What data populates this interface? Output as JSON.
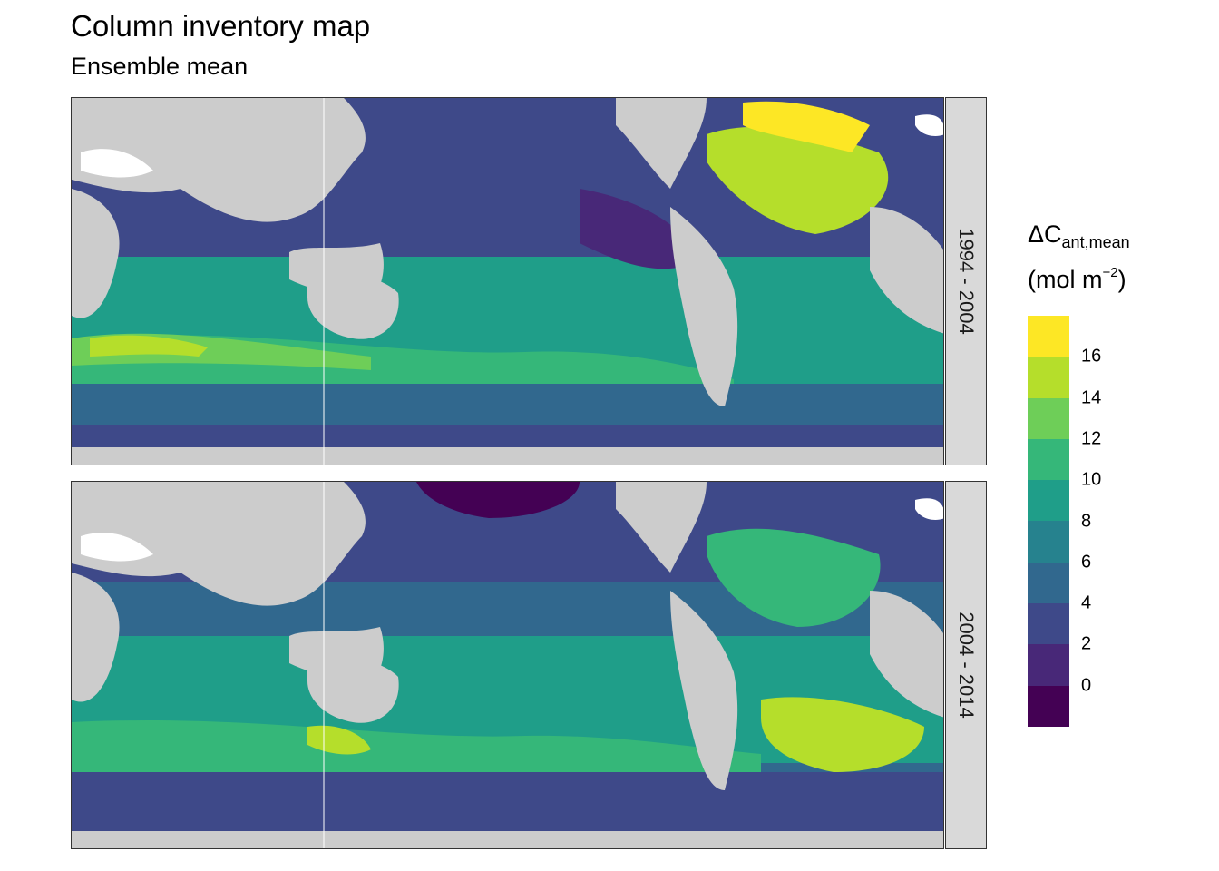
{
  "title": "Column inventory map",
  "subtitle": "Ensemble mean",
  "legend": {
    "title_main": "ΔC",
    "title_sub": "ant,mean",
    "unit_open": "(mol m",
    "unit_sup": "−2",
    "unit_close": ")",
    "ticks": [
      "16",
      "14",
      "12",
      "10",
      "8",
      "6",
      "4",
      "2",
      "0"
    ],
    "colors": [
      "#fde725",
      "#b5de2b",
      "#6ece58",
      "#35b779",
      "#1f9e89",
      "#26828e",
      "#31688e",
      "#3e4989",
      "#482878",
      "#440154"
    ]
  },
  "panels": [
    {
      "label": "1994 - 2004"
    },
    {
      "label": "2004 - 2014"
    }
  ],
  "land_color": "#cccccc",
  "ice_color": "#ffffff"
}
